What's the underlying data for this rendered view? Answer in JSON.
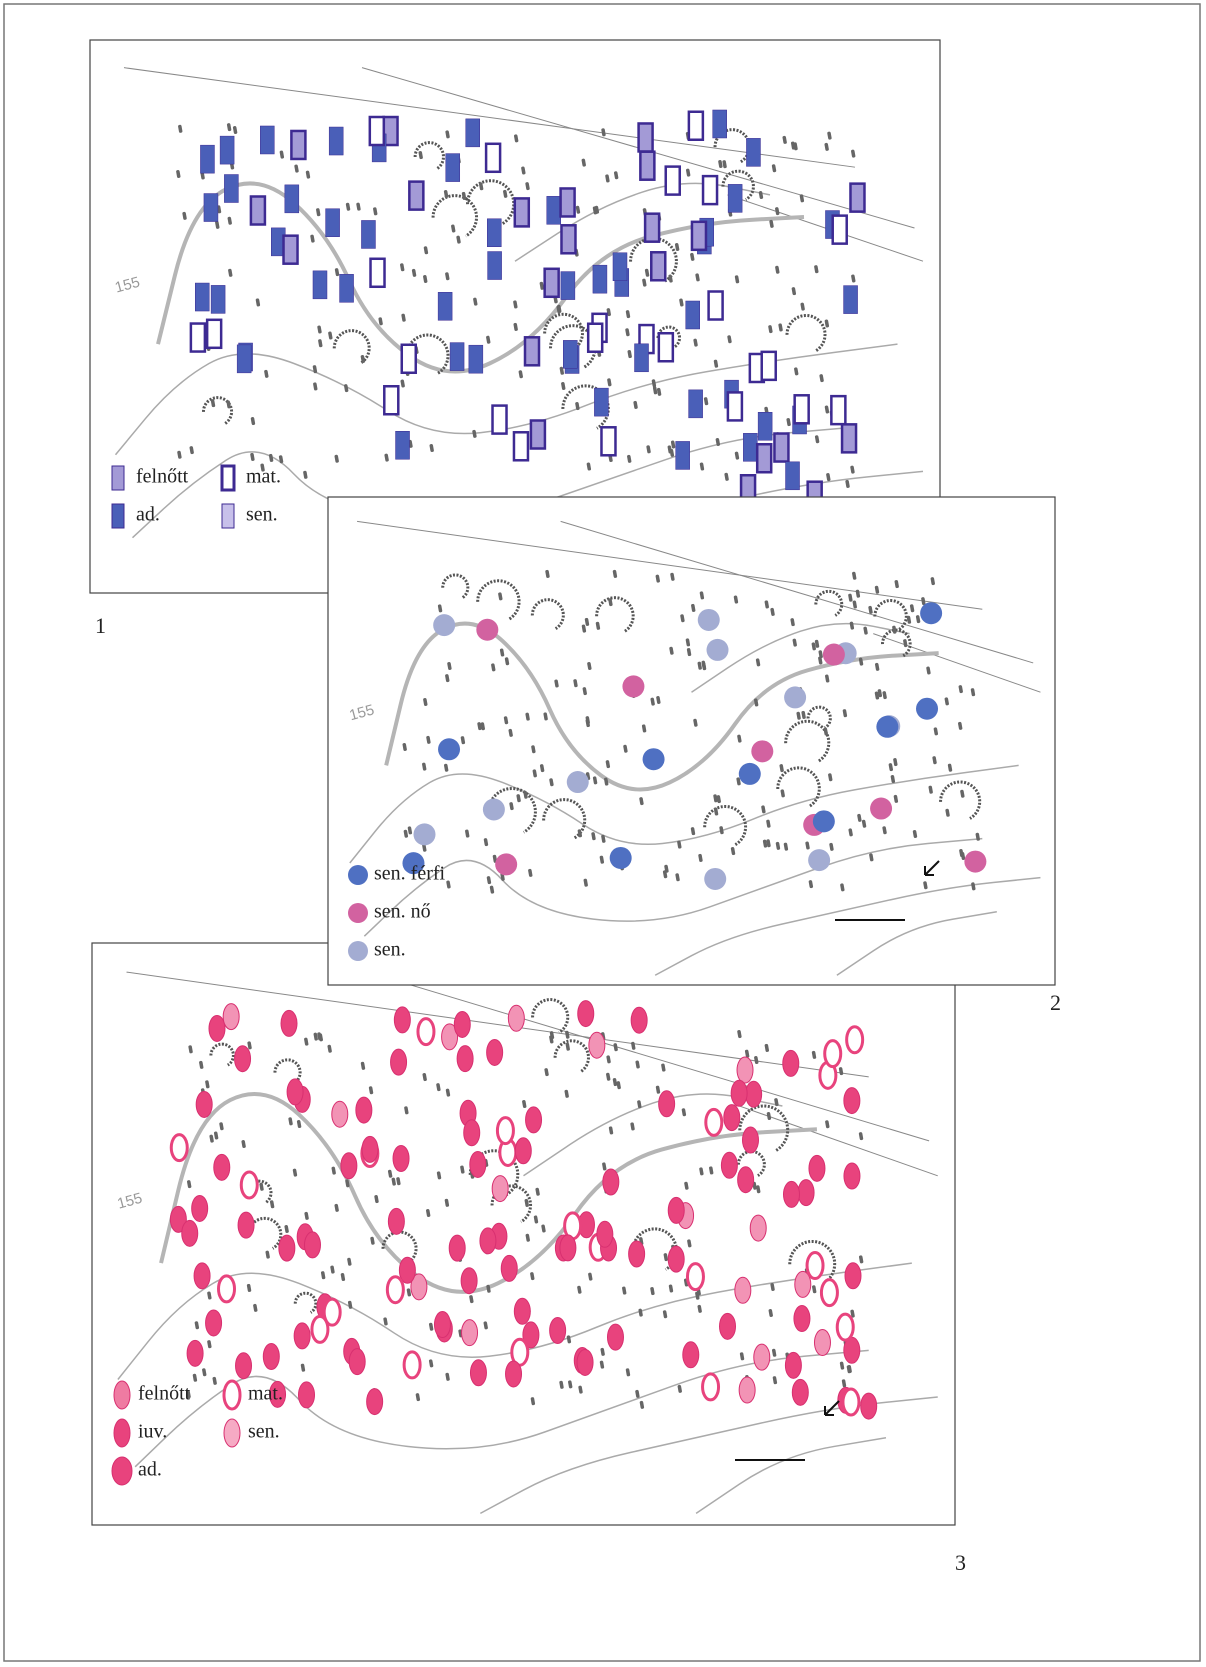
{
  "panels": [
    {
      "number": "1",
      "contour_label": "155",
      "legend": [
        "felnőtt",
        "mat.",
        "ad.",
        "sen."
      ]
    },
    {
      "number": "2",
      "contour_label": "155",
      "legend": [
        "sen. férfi",
        "sen. nő",
        "sen."
      ]
    },
    {
      "number": "3",
      "contour_label": "155",
      "legend": [
        "felnőtt",
        "mat.",
        "iuv.",
        "sen.",
        "ad."
      ]
    }
  ]
}
